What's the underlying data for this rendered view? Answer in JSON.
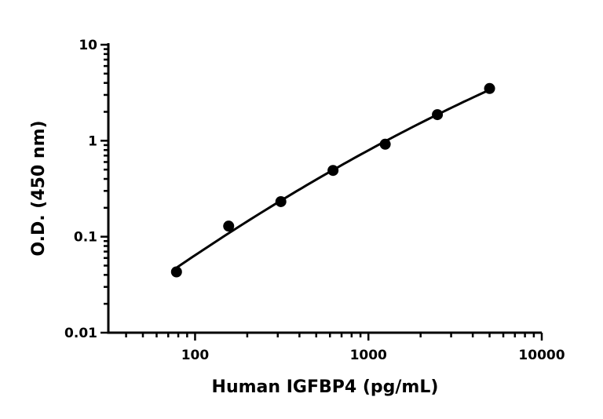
{
  "chart_data": {
    "type": "scatter",
    "xlabel": "Human IGFBP4 (pg/mL)",
    "ylabel": "O.D. (450 nm)",
    "x_scale": "log",
    "y_scale": "log",
    "xlim": [
      31.6,
      10000
    ],
    "ylim": [
      0.01,
      10
    ],
    "x_ticks": [
      {
        "value": 100,
        "label": "100"
      },
      {
        "value": 1000,
        "label": "1000"
      },
      {
        "value": 10000,
        "label": "10000"
      }
    ],
    "y_ticks": [
      {
        "value": 0.01,
        "label": "0.01"
      },
      {
        "value": 0.1,
        "label": "0.1"
      },
      {
        "value": 1,
        "label": "1"
      },
      {
        "value": 10,
        "label": "10"
      }
    ],
    "grid": false,
    "fit_curve": true,
    "points": {
      "x": [
        78.125,
        156.25,
        312.5,
        625,
        1250,
        2500,
        5000
      ],
      "y": [
        0.043,
        0.129,
        0.232,
        0.49,
        0.92,
        1.87,
        3.5
      ]
    },
    "colors": {
      "marker": "#000000",
      "line": "#000000"
    }
  }
}
